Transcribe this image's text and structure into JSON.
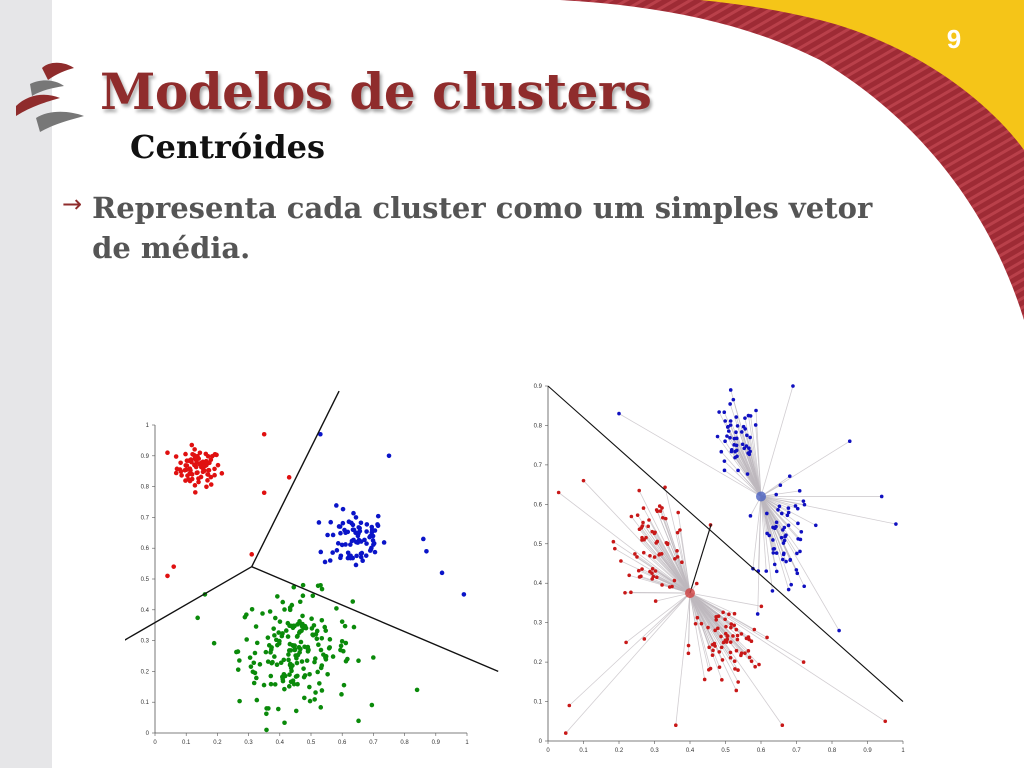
{
  "slide": {
    "number": "9",
    "title": "Modelos de clusters",
    "subtitle": "Centróides",
    "bullet_arrow": "→",
    "bullet_text": "Representa cada cluster como um simples vetor de média."
  },
  "theme": {
    "accent": "#8f2c2c",
    "gold": "#f5c518",
    "side_strip": "#e6e6e8"
  },
  "chart_data": [
    {
      "type": "scatter",
      "title": "",
      "xlabel": "",
      "ylabel": "",
      "xlim": [
        0,
        1
      ],
      "ylim": [
        0,
        1
      ],
      "x_ticks": [
        "0",
        "0.1",
        "0.2",
        "0.3",
        "0.4",
        "0.5",
        "0.6",
        "0.7",
        "0.8",
        "0.9",
        "1"
      ],
      "y_ticks": [
        "0",
        "0.1",
        "0.2",
        "0.3",
        "0.4",
        "0.5",
        "0.6",
        "0.7",
        "0.8",
        "0.9",
        "1"
      ],
      "clusters": [
        {
          "color": "#e01010",
          "center": [
            0.14,
            0.86
          ],
          "spread": [
            0.035,
            0.03
          ],
          "count": 80
        },
        {
          "color": "#0a14c8",
          "center": [
            0.64,
            0.63
          ],
          "spread": [
            0.05,
            0.05
          ],
          "count": 80
        },
        {
          "color": "#0a8a0a",
          "center": [
            0.45,
            0.27
          ],
          "spread": [
            0.09,
            0.09
          ],
          "count": 200
        }
      ],
      "outliers": [
        {
          "x": 0.35,
          "y": 0.97,
          "color": "#e01010"
        },
        {
          "x": 0.43,
          "y": 0.83,
          "color": "#e01010"
        },
        {
          "x": 0.35,
          "y": 0.78,
          "color": "#e01010"
        },
        {
          "x": 0.06,
          "y": 0.54,
          "color": "#e01010"
        },
        {
          "x": 0.04,
          "y": 0.51,
          "color": "#e01010"
        },
        {
          "x": 0.31,
          "y": 0.58,
          "color": "#e01010"
        },
        {
          "x": 0.04,
          "y": 0.91,
          "color": "#e01010"
        },
        {
          "x": 0.53,
          "y": 0.97,
          "color": "#0a14c8"
        },
        {
          "x": 0.75,
          "y": 0.9,
          "color": "#0a14c8"
        },
        {
          "x": 0.86,
          "y": 0.63,
          "color": "#0a14c8"
        },
        {
          "x": 0.87,
          "y": 0.59,
          "color": "#0a14c8"
        },
        {
          "x": 0.92,
          "y": 0.52,
          "color": "#0a14c8"
        },
        {
          "x": 0.99,
          "y": 0.45,
          "color": "#0a14c8"
        },
        {
          "x": 0.84,
          "y": 0.14,
          "color": "#0a8a0a"
        },
        {
          "x": 0.16,
          "y": 0.45,
          "color": "#0a8a0a"
        }
      ],
      "boundaries": [
        [
          [
            0.31,
            0.54
          ],
          [
            0.59,
            1.11
          ]
        ],
        [
          [
            0.31,
            0.54
          ],
          [
            -0.1,
            0.3
          ]
        ],
        [
          [
            0.31,
            0.54
          ],
          [
            1.1,
            0.2
          ]
        ]
      ]
    },
    {
      "type": "scatter",
      "title": "",
      "xlabel": "",
      "ylabel": "",
      "xlim": [
        0,
        1
      ],
      "ylim": [
        0,
        0.9
      ],
      "x_ticks": [
        "0",
        "0.1",
        "0.2",
        "0.3",
        "0.4",
        "0.5",
        "0.6",
        "0.7",
        "0.8",
        "0.9",
        "1"
      ],
      "y_ticks": [
        "0",
        "0.1",
        "0.2",
        "0.3",
        "0.4",
        "0.5",
        "0.6",
        "0.7",
        "0.8",
        "0.9"
      ],
      "centroids": [
        {
          "x": 0.6,
          "y": 0.62,
          "color": "#4a60c0"
        },
        {
          "x": 0.4,
          "y": 0.375,
          "color": "#d04040"
        }
      ],
      "clusters": [
        {
          "color": "#1010c0",
          "centroid": 0,
          "blobs": [
            {
              "center": [
                0.53,
                0.76
              ],
              "spread": [
                0.035,
                0.05
              ],
              "count": 50
            },
            {
              "center": [
                0.67,
                0.5
              ],
              "spread": [
                0.035,
                0.07
              ],
              "count": 60
            }
          ]
        },
        {
          "color": "#c81818",
          "centroid": 1,
          "blobs": [
            {
              "center": [
                0.3,
                0.5
              ],
              "spread": [
                0.05,
                0.06
              ],
              "count": 70
            },
            {
              "center": [
                0.5,
                0.24
              ],
              "spread": [
                0.05,
                0.05
              ],
              "count": 70
            }
          ]
        }
      ],
      "outliers": [
        {
          "x": 0.69,
          "y": 0.9,
          "cluster": 0
        },
        {
          "x": 0.2,
          "y": 0.83,
          "cluster": 0
        },
        {
          "x": 0.85,
          "y": 0.76,
          "cluster": 0
        },
        {
          "x": 0.94,
          "y": 0.62,
          "cluster": 0
        },
        {
          "x": 0.98,
          "y": 0.55,
          "cluster": 0
        },
        {
          "x": 0.82,
          "y": 0.28,
          "cluster": 0
        },
        {
          "x": 0.03,
          "y": 0.63,
          "cluster": 1
        },
        {
          "x": 0.1,
          "y": 0.66,
          "cluster": 1
        },
        {
          "x": 0.06,
          "y": 0.09,
          "cluster": 1
        },
        {
          "x": 0.05,
          "y": 0.02,
          "cluster": 1
        },
        {
          "x": 0.95,
          "y": 0.05,
          "cluster": 1
        },
        {
          "x": 0.72,
          "y": 0.2,
          "cluster": 1
        },
        {
          "x": 0.36,
          "y": 0.04,
          "cluster": 1
        },
        {
          "x": 0.66,
          "y": 0.04,
          "cluster": 1
        },
        {
          "x": 0.22,
          "y": 0.25,
          "cluster": 1
        }
      ],
      "boundaries": [
        [
          [
            0.0,
            0.9
          ],
          [
            1.0,
            0.1
          ]
        ],
        [
          [
            0.4,
            0.375
          ],
          [
            0.46,
            0.55
          ]
        ]
      ]
    }
  ]
}
